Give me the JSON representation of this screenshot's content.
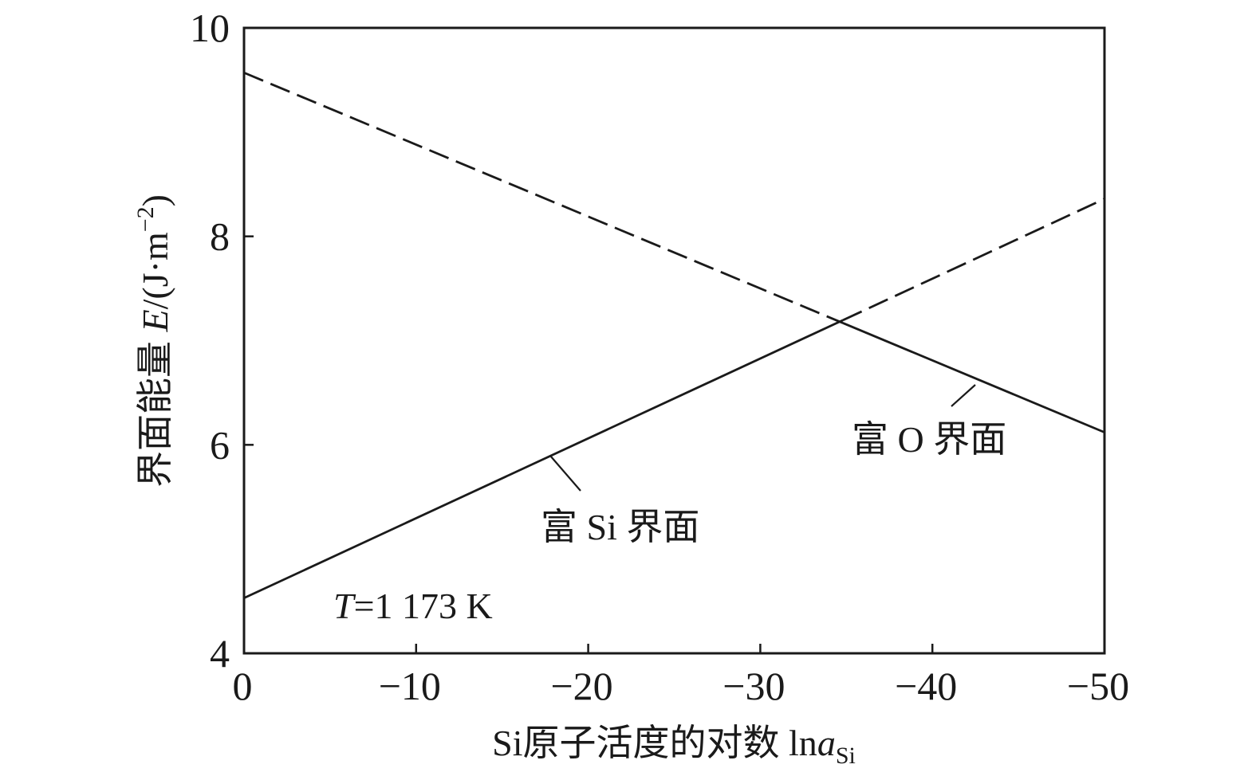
{
  "chart_data": {
    "type": "line",
    "xlabel": "Si原子活度的对数 ln",
    "xlabel_var": "a",
    "xlabel_sub": "Si",
    "ylabel": "界面能量 ",
    "ylabel_var": "E",
    "ylabel_unit": "/(J·m",
    "ylabel_sup": "−2",
    "ylabel_close": ")",
    "xlim": [
      0,
      -50
    ],
    "ylim": [
      4,
      10
    ],
    "x_ticks": [
      {
        "v": 0,
        "label": "0"
      },
      {
        "v": -10,
        "label": "−10"
      },
      {
        "v": -20,
        "label": "−20"
      },
      {
        "v": -30,
        "label": "−30"
      },
      {
        "v": -40,
        "label": "−40"
      },
      {
        "v": -50,
        "label": "−50"
      }
    ],
    "y_ticks": [
      {
        "v": 4,
        "label": "4"
      },
      {
        "v": 6,
        "label": "6"
      },
      {
        "v": 8,
        "label": "8"
      },
      {
        "v": 10,
        "label": "10"
      }
    ],
    "grid": false,
    "crossing_x": -34.8,
    "series": [
      {
        "name": "富 Si 界面",
        "x": [
          0,
          -50
        ],
        "y": [
          4.53,
          8.36
        ],
        "color": "#1a1a1a"
      },
      {
        "name": "富 O 界面",
        "x": [
          0,
          -50
        ],
        "y": [
          9.57,
          6.12
        ],
        "color": "#1a1a1a"
      }
    ],
    "annotations": [
      {
        "text_var": "T",
        "text": "=1 173 K"
      }
    ],
    "line_styles": {
      "lower_segment": "solid",
      "upper_segment": "dashed"
    }
  }
}
